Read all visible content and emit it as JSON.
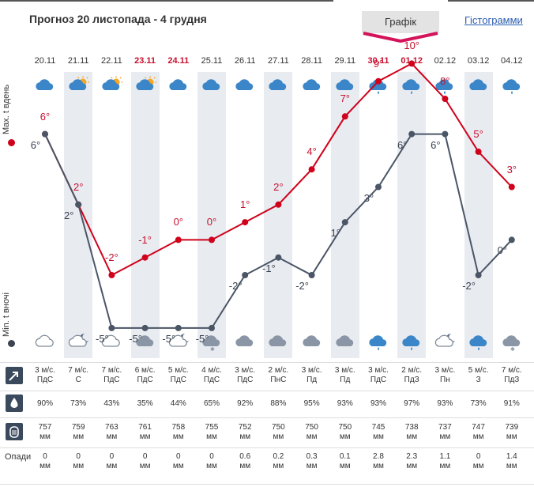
{
  "header": {
    "title": "Прогноз 20 листопада - 4 грудня",
    "tab_graph": "Графік",
    "tab_hist": "Гістограмми"
  },
  "side": {
    "max_label": "Max. t вдень",
    "min_label": "Min. t вночі"
  },
  "colors": {
    "max": "#d0021b",
    "min": "#4a5566",
    "accent": "#c8102e"
  },
  "days": [
    {
      "date": "20.11",
      "red": false,
      "day_icon": "rain-cloud-icon",
      "night_icon": "cloud-icon",
      "max": "6°",
      "min": "6°",
      "wind": "3 м/с.",
      "dir": "ПдС",
      "hum": "90%",
      "press": "757",
      "press_unit": "мм",
      "prec": "0",
      "prec_unit": "мм"
    },
    {
      "date": "21.11",
      "red": false,
      "day_icon": "partly-sunny-icon",
      "night_icon": "cloud-moon-icon",
      "max": "2°",
      "min": "2°",
      "wind": "7 м/с.",
      "dir": "С",
      "hum": "73%",
      "press": "759",
      "press_unit": "мм",
      "prec": "0",
      "prec_unit": "мм"
    },
    {
      "date": "22.11",
      "red": false,
      "day_icon": "partly-sunny-icon",
      "night_icon": "cloud-icon",
      "max": "-2°",
      "min": "-5°",
      "wind": "7 м/с.",
      "dir": "ПдС",
      "hum": "43%",
      "press": "763",
      "press_unit": "мм",
      "prec": "0",
      "prec_unit": "мм"
    },
    {
      "date": "23.11",
      "red": true,
      "day_icon": "partly-sunny-icon",
      "night_icon": "dark-cloud-icon",
      "max": "-1°",
      "min": "-5°",
      "wind": "6 м/с.",
      "dir": "ПдС",
      "hum": "35%",
      "press": "761",
      "press_unit": "мм",
      "prec": "0",
      "prec_unit": "мм"
    },
    {
      "date": "24.11",
      "red": true,
      "day_icon": "rain-cloud-icon",
      "night_icon": "cloud-moon-icon",
      "max": "0°",
      "min": "-5°",
      "wind": "5 м/с.",
      "dir": "ПдС",
      "hum": "44%",
      "press": "758",
      "press_unit": "мм",
      "prec": "0",
      "prec_unit": "мм"
    },
    {
      "date": "25.11",
      "red": false,
      "day_icon": "rain-cloud-icon",
      "night_icon": "snow-cloud-icon",
      "max": "0°",
      "min": "-5°",
      "wind": "4 м/с.",
      "dir": "ПдС",
      "hum": "65%",
      "press": "755",
      "press_unit": "мм",
      "prec": "0",
      "prec_unit": "мм"
    },
    {
      "date": "26.11",
      "red": false,
      "day_icon": "rain-cloud-icon",
      "night_icon": "dark-cloud-icon",
      "max": "1°",
      "min": "-2°",
      "wind": "3 м/с.",
      "dir": "ПдС",
      "hum": "92%",
      "press": "752",
      "press_unit": "мм",
      "prec": "0.6",
      "prec_unit": "мм"
    },
    {
      "date": "27.11",
      "red": false,
      "day_icon": "rain-cloud-icon",
      "night_icon": "dark-cloud-icon",
      "max": "2°",
      "min": "-1°",
      "wind": "2 м/с.",
      "dir": "ПнС",
      "hum": "88%",
      "press": "750",
      "press_unit": "мм",
      "prec": "0.2",
      "prec_unit": "мм"
    },
    {
      "date": "28.11",
      "red": false,
      "day_icon": "rain-cloud-icon",
      "night_icon": "dark-cloud-icon",
      "max": "4°",
      "min": "-2°",
      "wind": "3 м/с.",
      "dir": "Пд",
      "hum": "95%",
      "press": "750",
      "press_unit": "мм",
      "prec": "0.3",
      "prec_unit": "мм"
    },
    {
      "date": "29.11",
      "red": false,
      "day_icon": "rain-cloud-icon",
      "night_icon": "dark-cloud-icon",
      "max": "7°",
      "min": "1°",
      "wind": "3 м/с.",
      "dir": "Пд",
      "hum": "93%",
      "press": "750",
      "press_unit": "мм",
      "prec": "0.1",
      "prec_unit": "мм"
    },
    {
      "date": "30.11",
      "red": true,
      "day_icon": "rain-drop-cloud-icon",
      "night_icon": "rain-drop-cloud-icon",
      "max": "9°",
      "min": "3°",
      "wind": "3 м/с.",
      "dir": "ПдС",
      "hum": "93%",
      "press": "745",
      "press_unit": "мм",
      "prec": "2.8",
      "prec_unit": "мм"
    },
    {
      "date": "01.12",
      "red": true,
      "day_icon": "rain-drop-cloud-icon",
      "night_icon": "rain-drop-cloud-icon",
      "max": "10°",
      "min": "6°",
      "wind": "2 м/с.",
      "dir": "ПдЗ",
      "hum": "97%",
      "press": "738",
      "press_unit": "мм",
      "prec": "2.3",
      "prec_unit": "мм"
    },
    {
      "date": "02.12",
      "red": false,
      "day_icon": "rain-drop-cloud-icon",
      "night_icon": "cloud-moon-icon",
      "max": "8°",
      "min": "6°",
      "wind": "3 м/с.",
      "dir": "Пн",
      "hum": "93%",
      "press": "737",
      "press_unit": "мм",
      "prec": "1.1",
      "prec_unit": "мм"
    },
    {
      "date": "03.12",
      "red": false,
      "day_icon": "rain-cloud-icon",
      "night_icon": "rain-drop-cloud-icon",
      "max": "5°",
      "min": "-2°",
      "wind": "5 м/с.",
      "dir": "З",
      "hum": "73%",
      "press": "747",
      "press_unit": "мм",
      "prec": "0",
      "prec_unit": "мм"
    },
    {
      "date": "04.12",
      "red": false,
      "day_icon": "rain-drop-cloud-icon",
      "night_icon": "snow-cloud-icon",
      "max": "3°",
      "min": "0°",
      "wind": "7 м/с.",
      "dir": "ПдЗ",
      "hum": "91%",
      "press": "739",
      "press_unit": "мм",
      "prec": "1.4",
      "prec_unit": "мм"
    }
  ],
  "rows": {
    "wind_icon": "wind-arrow-icon",
    "hum_icon": "humidity-drop-icon",
    "press_icon": "barometer-icon",
    "prec_label": "Опади"
  },
  "chart_data": {
    "type": "line",
    "categories": [
      "20.11",
      "21.11",
      "22.11",
      "23.11",
      "24.11",
      "25.11",
      "26.11",
      "27.11",
      "28.11",
      "29.11",
      "30.11",
      "01.12",
      "02.12",
      "03.12",
      "04.12"
    ],
    "series": [
      {
        "name": "Max. t вдень",
        "values": [
          6,
          2,
          -2,
          -1,
          0,
          0,
          1,
          2,
          4,
          7,
          9,
          10,
          8,
          5,
          3
        ]
      },
      {
        "name": "Min. t вночі",
        "values": [
          6,
          2,
          -5,
          -5,
          -5,
          -5,
          -2,
          -1,
          -2,
          1,
          3,
          6,
          6,
          -2,
          0
        ]
      }
    ]
  }
}
